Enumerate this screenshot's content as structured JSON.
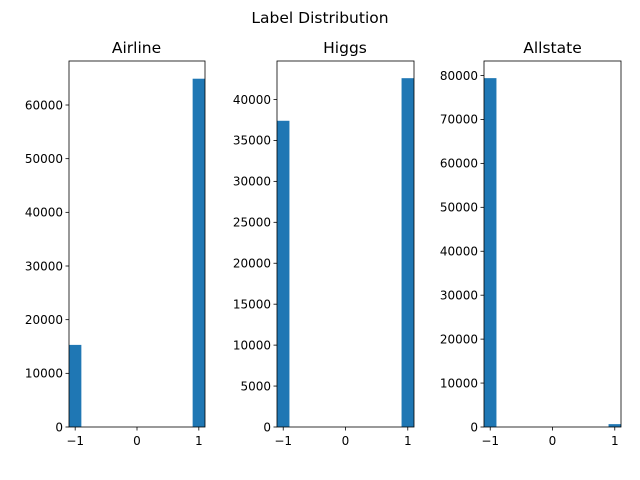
{
  "chart_data": {
    "type": "bar",
    "title": "Label Distribution",
    "bar_color": "#1f77b4",
    "panels": [
      {
        "title": "Airline",
        "xlabel": "",
        "ylabel": "",
        "categories": [
          "-1",
          "1"
        ],
        "x": [
          -1,
          1
        ],
        "values": [
          15300,
          64900
        ],
        "xlim": [
          -1.1,
          1.1
        ],
        "ylim": [
          0,
          68200
        ],
        "xticks": [
          -1,
          0,
          1
        ],
        "xtick_labels": [
          "−1",
          "0",
          "1"
        ],
        "yticks": [
          0,
          10000,
          20000,
          30000,
          40000,
          50000,
          60000
        ],
        "ytick_labels": [
          "0",
          "10000",
          "20000",
          "30000",
          "40000",
          "50000",
          "60000"
        ]
      },
      {
        "title": "Higgs",
        "xlabel": "",
        "ylabel": "",
        "categories": [
          "-1",
          "1"
        ],
        "x": [
          -1,
          1
        ],
        "values": [
          37400,
          42600
        ],
        "xlim": [
          -1.1,
          1.1
        ],
        "ylim": [
          0,
          44700
        ],
        "xticks": [
          -1,
          0,
          1
        ],
        "xtick_labels": [
          "−1",
          "0",
          "1"
        ],
        "yticks": [
          0,
          5000,
          10000,
          15000,
          20000,
          25000,
          30000,
          35000,
          40000
        ],
        "ytick_labels": [
          "0",
          "5000",
          "10000",
          "15000",
          "20000",
          "25000",
          "30000",
          "35000",
          "40000"
        ]
      },
      {
        "title": "Allstate",
        "xlabel": "",
        "ylabel": "",
        "categories": [
          "-1",
          "1"
        ],
        "x": [
          -1,
          1
        ],
        "values": [
          79400,
          650
        ],
        "xlim": [
          -1.1,
          1.1
        ],
        "ylim": [
          0,
          83300
        ],
        "xticks": [
          -1,
          0,
          1
        ],
        "xtick_labels": [
          "−1",
          "0",
          "1"
        ],
        "yticks": [
          0,
          10000,
          20000,
          30000,
          40000,
          50000,
          60000,
          70000,
          80000
        ],
        "ytick_labels": [
          "0",
          "10000",
          "20000",
          "30000",
          "40000",
          "50000",
          "60000",
          "70000",
          "80000"
        ]
      }
    ]
  }
}
